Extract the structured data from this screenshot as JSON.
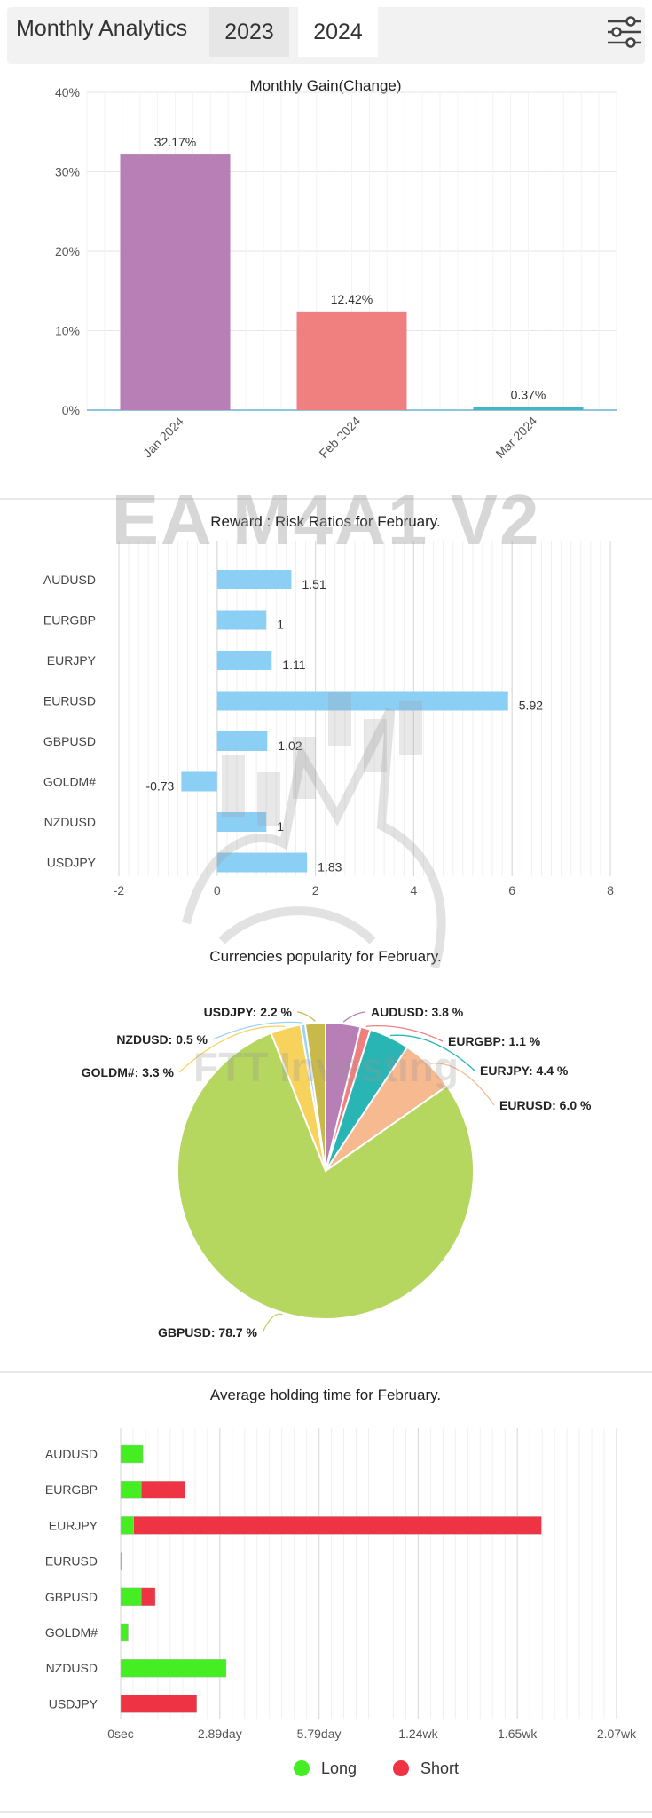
{
  "header": {
    "title": "Monthly Analytics",
    "tabs": [
      "2023",
      "2024"
    ],
    "active_tab": "2024",
    "filter_icon": "sliders-icon"
  },
  "chart_data": [
    {
      "type": "bar",
      "title": "Monthly Gain(Change)",
      "categories": [
        "Jan 2024",
        "Feb 2024",
        "Mar 2024"
      ],
      "values": [
        32.17,
        12.42,
        0.37
      ],
      "value_labels": [
        "32.17%",
        "12.42%",
        "0.37%"
      ],
      "colors": [
        "#b77fb5",
        "#f08080",
        "#48b3c3"
      ],
      "ylim": [
        0,
        40
      ],
      "yticks": [
        "0%",
        "10%",
        "20%",
        "30%",
        "40%"
      ],
      "grid": true
    },
    {
      "type": "bar",
      "orientation": "horizontal",
      "title": "Reward : Risk Ratios for February.",
      "categories": [
        "AUDUSD",
        "EURGBP",
        "EURJPY",
        "EURUSD",
        "GBPUSD",
        "GOLDM#",
        "NZDUSD",
        "USDJPY"
      ],
      "values": [
        1.51,
        1,
        1.11,
        5.92,
        1.02,
        -0.73,
        1,
        1.83
      ],
      "value_labels": [
        "1.51",
        "1",
        "1.11",
        "5.92",
        "1.02",
        "-0.73",
        "1",
        "1.83"
      ],
      "color": "#8ccff5",
      "xlim": [
        -2,
        8
      ],
      "xticks": [
        "-2",
        "0",
        "2",
        "4",
        "6",
        "8"
      ],
      "grid": true
    },
    {
      "type": "pie",
      "title": "Currencies popularity for February.",
      "slices": [
        {
          "label": "AUDUSD",
          "value": 3.8,
          "text": "AUDUSD: 3.8 %",
          "color": "#b77fb5"
        },
        {
          "label": "EURGBP",
          "value": 1.1,
          "text": "EURGBP: 1.1 %",
          "color": "#f08080"
        },
        {
          "label": "EURJPY",
          "value": 4.4,
          "text": "EURJPY: 4.4 %",
          "color": "#2ab5b5"
        },
        {
          "label": "EURUSD",
          "value": 6.0,
          "text": "EURUSD: 6.0 %",
          "color": "#f7b990"
        },
        {
          "label": "GBPUSD",
          "value": 78.7,
          "text": "GBPUSD: 78.7 %",
          "color": "#b5d65f"
        },
        {
          "label": "GOLDM#",
          "value": 3.3,
          "text": "GOLDM#: 3.3 %",
          "color": "#f7d35e"
        },
        {
          "label": "NZDUSD",
          "value": 0.5,
          "text": "NZDUSD: 0.5 %",
          "color": "#9ad4f5"
        },
        {
          "label": "USDJPY",
          "value": 2.2,
          "text": "USDJPY: 2.2 %",
          "color": "#c9b84a"
        }
      ]
    },
    {
      "type": "bar",
      "orientation": "horizontal",
      "stacked": true,
      "title": "Average holding time for February.",
      "categories": [
        "AUDUSD",
        "EURGBP",
        "EURJPY",
        "EURUSD",
        "GBPUSD",
        "GOLDM#",
        "NZDUSD",
        "USDJPY"
      ],
      "x_unit": "day",
      "xlim": [
        0,
        14.47
      ],
      "xticks": [
        "0sec",
        "2.89day",
        "5.79day",
        "1.24wk",
        "1.65wk",
        "2.07wk"
      ],
      "series": [
        {
          "name": "Long",
          "color": "#44ee22",
          "values": [
            0.65,
            0.6,
            0.38,
            0.03,
            0.6,
            0.22,
            3.08,
            0.0
          ]
        },
        {
          "name": "Short",
          "color": "#ee3344",
          "values": [
            0.0,
            1.27,
            11.9,
            0.0,
            0.41,
            0.0,
            0.0,
            2.22
          ]
        }
      ],
      "legend": {
        "position": "bottom",
        "items": [
          "Long",
          "Short"
        ]
      },
      "grid": true
    }
  ],
  "watermark": {
    "text": "EA M4A1 V2",
    "subtext": "FTT Investing"
  }
}
